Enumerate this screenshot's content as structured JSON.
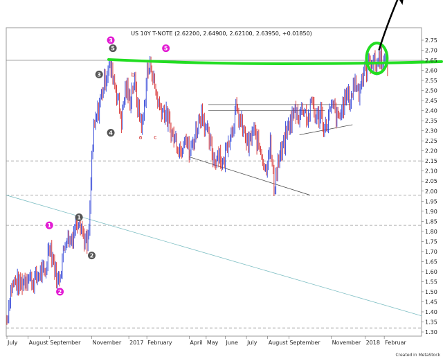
{
  "chart_data": {
    "type": "line",
    "title": "US 10Y T-NOTE (2.62200, 2.64900, 2.62100, 2.63950, +0.01850)",
    "credit": "Created in MetaStock",
    "ylim": [
      1.3,
      2.75
    ],
    "yticks": [
      2.75,
      2.7,
      2.65,
      2.6,
      2.55,
      2.5,
      2.45,
      2.4,
      2.35,
      2.3,
      2.25,
      2.2,
      2.15,
      2.1,
      2.05,
      2.0,
      1.95,
      1.9,
      1.85,
      1.8,
      1.75,
      1.7,
      1.65,
      1.6,
      1.55,
      1.5,
      1.45,
      1.4,
      1.35,
      1.3
    ],
    "ytick_labels": [
      "2.75",
      "2.70",
      "2.65",
      "2.60",
      "2.55",
      "2.50",
      "2.45",
      "2.40",
      "2.35",
      "2.30",
      "2.25",
      "2.20",
      "2.15",
      "2.10",
      "2.05",
      "2.00",
      "1.95",
      "1.90",
      "1.85",
      "1.80",
      "1.75",
      "1.70",
      "1.65",
      "1.60",
      "1.55",
      "1.50",
      "1.45",
      "1.40",
      "1.35",
      "1.30"
    ],
    "xlim": [
      0,
      19.2
    ],
    "x_labels": [
      {
        "t": 0,
        "label": "July"
      },
      {
        "t": 1,
        "label": "August"
      },
      {
        "t": 2,
        "label": "September"
      },
      {
        "t": 4,
        "label": "November"
      },
      {
        "t": 5.75,
        "label": "2017"
      },
      {
        "t": 6.6,
        "label": "February"
      },
      {
        "t": 8.6,
        "label": "April"
      },
      {
        "t": 9.4,
        "label": "May"
      },
      {
        "t": 10.3,
        "label": "June"
      },
      {
        "t": 11.3,
        "label": "July"
      },
      {
        "t": 12.3,
        "label": "August"
      },
      {
        "t": 13.3,
        "label": "September"
      },
      {
        "t": 15.3,
        "label": "November"
      },
      {
        "t": 16.9,
        "label": "2018"
      },
      {
        "t": 17.8,
        "label": "Februar"
      }
    ],
    "series": [
      {
        "x": [
          0,
          0.1,
          0.2,
          0.4,
          0.6,
          0.8,
          1.0,
          1.2,
          1.4,
          1.6,
          1.8,
          2.0,
          2.2,
          2.4,
          2.6,
          2.8,
          3.0,
          3.2,
          3.4,
          3.6,
          3.8,
          3.9,
          4.0,
          4.1,
          4.2,
          4.3,
          4.4,
          4.5,
          4.6,
          4.8,
          5.0,
          5.2,
          5.4,
          5.6,
          5.8,
          6.0,
          6.2,
          6.4,
          6.6,
          6.8,
          7.0,
          7.2,
          7.4,
          7.6,
          7.8,
          8.0,
          8.2,
          8.4,
          8.6,
          8.8,
          9.0,
          9.2,
          9.4,
          9.6,
          9.8,
          10.0,
          10.2,
          10.4,
          10.6,
          10.8,
          11.0,
          11.2,
          11.4,
          11.6,
          11.8,
          12.0,
          12.2,
          12.4,
          12.6,
          12.8,
          13.0,
          13.2,
          13.4,
          13.6,
          13.8,
          14.0,
          14.2,
          14.4,
          14.6,
          14.8,
          15.0,
          15.2,
          15.4,
          15.6,
          15.8,
          16.0,
          16.2,
          16.4,
          16.6,
          16.8,
          17.0,
          17.2,
          17.4,
          17.6,
          17.8,
          18.0
        ],
        "y": [
          1.36,
          1.45,
          1.52,
          1.55,
          1.53,
          1.56,
          1.58,
          1.55,
          1.57,
          1.6,
          1.58,
          1.75,
          1.65,
          1.54,
          1.65,
          1.78,
          1.75,
          1.82,
          1.88,
          1.78,
          1.72,
          1.85,
          2.15,
          2.3,
          2.35,
          2.4,
          2.45,
          2.5,
          2.55,
          2.62,
          2.58,
          2.48,
          2.35,
          2.52,
          2.45,
          2.55,
          2.4,
          2.32,
          2.58,
          2.63,
          2.5,
          2.42,
          2.4,
          2.35,
          2.28,
          2.25,
          2.2,
          2.3,
          2.18,
          2.25,
          2.33,
          2.4,
          2.3,
          2.22,
          2.15,
          2.2,
          2.12,
          2.25,
          2.3,
          2.4,
          2.35,
          2.28,
          2.22,
          2.3,
          2.25,
          2.2,
          2.1,
          2.25,
          2.02,
          2.15,
          2.2,
          2.3,
          2.35,
          2.4,
          2.38,
          2.42,
          2.35,
          2.45,
          2.35,
          2.4,
          2.3,
          2.38,
          2.42,
          2.35,
          2.4,
          2.48,
          2.45,
          2.55,
          2.5,
          2.58,
          2.62,
          2.66,
          2.62,
          2.67,
          2.64,
          2.64
        ]
      }
    ],
    "colors": {
      "up_bar": "#2b3fd6",
      "down_bar": "#d62b2b",
      "resistance": "#22dd22",
      "arrow": "#000000",
      "grid_dash": "#9a9a9a",
      "channel": "#7fbfc4",
      "wave_circle_pink": "#e21bd3",
      "wave_circle_dark": "#555555",
      "wave_letter": "#cc2222"
    },
    "hlines_dashed": [
      2.15,
      1.98,
      1.83,
      1.32
    ],
    "hline_solid": 2.65,
    "resistance_level": 2.64,
    "annotations": [
      {
        "label": "1",
        "style": "pink",
        "t": 2.0,
        "y": 1.83
      },
      {
        "label": "2",
        "style": "pink",
        "t": 2.5,
        "y": 1.5
      },
      {
        "label": "1",
        "style": "dark",
        "t": 3.4,
        "y": 1.87
      },
      {
        "label": "2",
        "style": "dark",
        "t": 4.0,
        "y": 1.68
      },
      {
        "label": "3",
        "style": "dark",
        "t": 4.35,
        "y": 2.58
      },
      {
        "label": "4",
        "style": "dark",
        "t": 4.9,
        "y": 2.29
      },
      {
        "label": "3",
        "style": "pink",
        "t": 4.9,
        "y": 2.75
      },
      {
        "label": "5",
        "style": "dark",
        "t": 5.0,
        "y": 2.71
      },
      {
        "label": "5",
        "style": "pink",
        "t": 7.5,
        "y": 2.71
      },
      {
        "label": "a",
        "style": "letter",
        "t": 6.3,
        "y": 2.26
      },
      {
        "label": "b",
        "style": "letter",
        "t": 5.95,
        "y": 2.57
      },
      {
        "label": "c",
        "style": "letter",
        "t": 7.0,
        "y": 2.26
      }
    ]
  }
}
